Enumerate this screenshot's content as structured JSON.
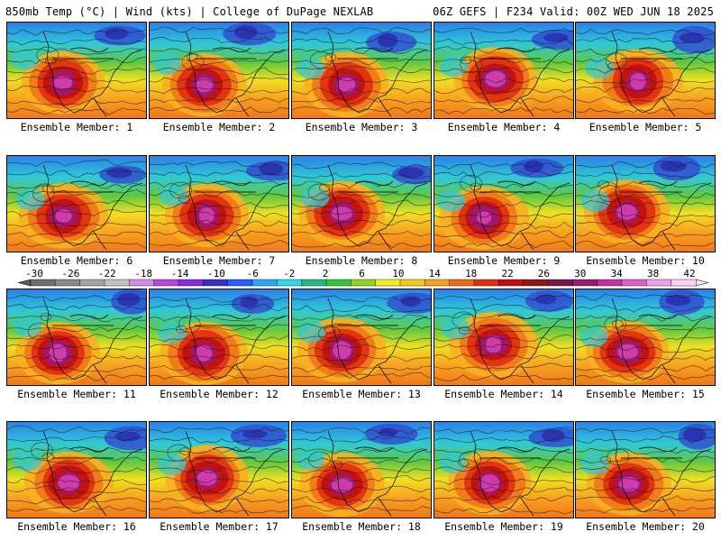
{
  "header": {
    "title_left": "850mb Temp (°C) | Wind (kts) | College of DuPage NEXLAB",
    "title_right": "06Z GEFS | F234 Valid: 00Z WED JUN 18 2025"
  },
  "panels": [
    {
      "label": "Ensemble Member: 1"
    },
    {
      "label": "Ensemble Member: 2"
    },
    {
      "label": "Ensemble Member: 3"
    },
    {
      "label": "Ensemble Member: 4"
    },
    {
      "label": "Ensemble Member: 5"
    },
    {
      "label": "Ensemble Member: 6"
    },
    {
      "label": "Ensemble Member: 7"
    },
    {
      "label": "Ensemble Member: 8"
    },
    {
      "label": "Ensemble Member: 9"
    },
    {
      "label": "Ensemble Member: 10"
    },
    {
      "label": "Ensemble Member: 11"
    },
    {
      "label": "Ensemble Member: 12"
    },
    {
      "label": "Ensemble Member: 13"
    },
    {
      "label": "Ensemble Member: 14"
    },
    {
      "label": "Ensemble Member: 15"
    },
    {
      "label": "Ensemble Member: 16"
    },
    {
      "label": "Ensemble Member: 17"
    },
    {
      "label": "Ensemble Member: 18"
    },
    {
      "label": "Ensemble Member: 19"
    },
    {
      "label": "Ensemble Member: 20"
    }
  ],
  "colorbar": {
    "tick_labels": [
      "-30",
      "-26",
      "-22",
      "-18",
      "-14",
      "-10",
      "-6",
      "-2",
      "2",
      "6",
      "10",
      "14",
      "18",
      "22",
      "26",
      "30",
      "34",
      "38",
      "42"
    ],
    "colors": [
      "#6e6e6e",
      "#8a8a8a",
      "#a4a4a4",
      "#c2c2c2",
      "#d28be8",
      "#b847e0",
      "#8a2be2",
      "#3a2fc8",
      "#2860ff",
      "#28a8ff",
      "#30d8e8",
      "#22b888",
      "#34c838",
      "#90d820",
      "#f4f020",
      "#f8c818",
      "#f8a020",
      "#f06818",
      "#e03010",
      "#c01010",
      "#901818",
      "#781848",
      "#a01870",
      "#c830a0",
      "#e060c8",
      "#f0a0e8",
      "#ffd0f8"
    ]
  }
}
